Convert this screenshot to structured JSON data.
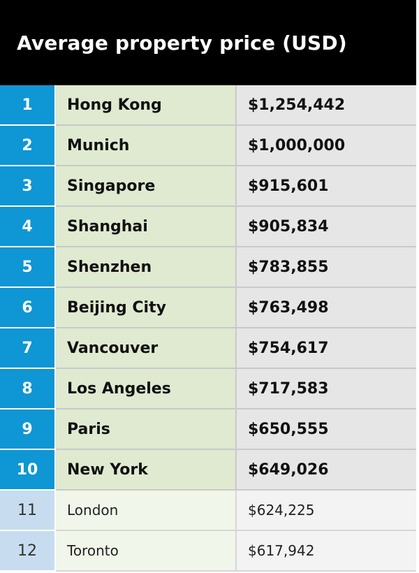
{
  "chart_data": {
    "type": "table",
    "title": "Average property price (USD)",
    "rows": [
      {
        "rank": "1",
        "city": "Hong Kong",
        "price": "$1,254,442",
        "value": 1254442,
        "top10": true
      },
      {
        "rank": "2",
        "city": "Munich",
        "price": "$1,000,000",
        "value": 1000000,
        "top10": true
      },
      {
        "rank": "3",
        "city": "Singapore",
        "price": "$915,601",
        "value": 915601,
        "top10": true
      },
      {
        "rank": "4",
        "city": "Shanghai",
        "price": "$905,834",
        "value": 905834,
        "top10": true
      },
      {
        "rank": "5",
        "city": "Shenzhen",
        "price": "$783,855",
        "value": 783855,
        "top10": true
      },
      {
        "rank": "6",
        "city": "Beijing City",
        "price": "$763,498",
        "value": 763498,
        "top10": true
      },
      {
        "rank": "7",
        "city": "Vancouver",
        "price": "$754,617",
        "value": 754617,
        "top10": true
      },
      {
        "rank": "8",
        "city": "Los Angeles",
        "price": "$717,583",
        "value": 717583,
        "top10": true
      },
      {
        "rank": "9",
        "city": "Paris",
        "price": "$650,555",
        "value": 650555,
        "top10": true
      },
      {
        "rank": "10",
        "city": "New York",
        "price": "$649,026",
        "value": 649026,
        "top10": true
      },
      {
        "rank": "11",
        "city": "London",
        "price": "$624,225",
        "value": 624225,
        "top10": false
      },
      {
        "rank": "12",
        "city": "Toronto",
        "price": "$617,942",
        "value": 617942,
        "top10": false
      }
    ]
  },
  "colors": {
    "header_bg": "#000000",
    "rank_top": "#0f96d4",
    "rank_rest": "#c7ddef",
    "city_top": "#dfead0",
    "price_top": "#e6e6e6"
  }
}
